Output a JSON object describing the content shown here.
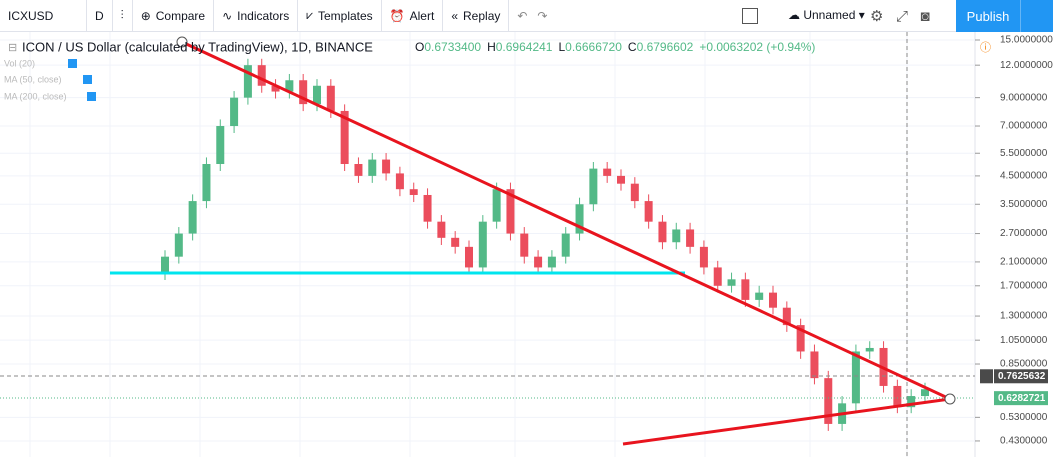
{
  "toolbar": {
    "symbol": "ICXUSD",
    "interval": "D",
    "compare": "Compare",
    "indicators": "Indicators",
    "templates": "Templates",
    "alert": "Alert",
    "replay": "Replay",
    "layout_name": "Unnamed",
    "publish": "Publish"
  },
  "legend": {
    "title": "ICON / US Dollar (calculated by TradingView), 1D, BINANCE",
    "o": "O",
    "open": "0.6733400",
    "h": "H",
    "high": "0.6964241",
    "l": "L",
    "low": "0.6666720",
    "c": "C",
    "close": "0.6796602",
    "change": "+0.0063202 (+0.94%)",
    "studies": [
      "Vol (20)",
      "MA (50, close)",
      "MA (200, close)"
    ]
  },
  "chart_data": {
    "type": "candlestick",
    "log_scale": true,
    "grid": true,
    "up_color": "#53b987",
    "down_color": "#eb4d5c",
    "ylim": [
      0.373,
      16.1
    ],
    "yticks": [
      {
        "value": 15,
        "label": "15.0000000"
      },
      {
        "value": 12,
        "label": "12.0000000"
      },
      {
        "value": 9,
        "label": "9.0000000"
      },
      {
        "value": 7,
        "label": "7.0000000"
      },
      {
        "value": 5.5,
        "label": "5.5000000"
      },
      {
        "value": 4.5,
        "label": "4.5000000"
      },
      {
        "value": 3.5,
        "label": "3.5000000"
      },
      {
        "value": 2.7,
        "label": "2.7000000"
      },
      {
        "value": 2.1,
        "label": "2.1000000"
      },
      {
        "value": 1.7,
        "label": "1.7000000"
      },
      {
        "value": 1.3,
        "label": "1.3000000"
      },
      {
        "value": 1.05,
        "label": "1.0500000"
      },
      {
        "value": 0.85,
        "label": "0.8500000"
      },
      {
        "value": 0.53,
        "label": "0.5300000"
      },
      {
        "value": 0.43,
        "label": "0.4300000"
      }
    ],
    "price_labels": [
      {
        "value": 0.7625632,
        "label": "0.7625632",
        "color": "#4a4a4a"
      },
      {
        "value": 0.6282721,
        "label": "0.6282721",
        "color": "#53b987"
      }
    ],
    "open": [
      1.9,
      2.2,
      2.7,
      3.6,
      5.0,
      7.0,
      9.0,
      12.0,
      10.0,
      9.5,
      10.5,
      8.5,
      10.0,
      8.0,
      5.0,
      4.5,
      5.2,
      4.6,
      4.0,
      3.8,
      3.0,
      2.6,
      2.4,
      2.0,
      3.0,
      4.0,
      2.7,
      2.2,
      2.0,
      2.2,
      2.7,
      3.5,
      4.8,
      4.5,
      4.2,
      3.6,
      3.0,
      2.5,
      2.8,
      2.4,
      2.0,
      1.7,
      1.8,
      1.5,
      1.6,
      1.4,
      1.2,
      0.95,
      0.75,
      0.5,
      0.6,
      0.95,
      0.98,
      0.7,
      0.58,
      0.64
    ],
    "high": [
      2.33,
      2.86,
      3.82,
      5.3,
      7.42,
      9.54,
      12.7,
      12.7,
      10.6,
      11.1,
      11.1,
      10.6,
      10.6,
      8.48,
      5.3,
      5.51,
      5.51,
      4.88,
      4.24,
      4.03,
      3.18,
      2.76,
      2.54,
      3.18,
      4.24,
      4.24,
      2.86,
      2.33,
      2.33,
      2.86,
      3.71,
      5.09,
      5.09,
      4.77,
      4.45,
      3.82,
      3.18,
      2.97,
      2.97,
      2.54,
      2.12,
      1.91,
      1.91,
      1.7,
      1.7,
      1.48,
      1.27,
      1.01,
      0.8,
      0.64,
      1.01,
      1.04,
      1.04,
      0.74,
      0.68,
      0.72
    ],
    "low": [
      1.79,
      2.07,
      2.54,
      3.38,
      4.7,
      6.58,
      8.46,
      9.4,
      8.93,
      8.93,
      7.99,
      7.99,
      7.52,
      4.7,
      4.23,
      4.23,
      4.32,
      3.76,
      3.57,
      2.82,
      2.44,
      2.26,
      1.88,
      1.88,
      2.82,
      2.54,
      2.07,
      1.88,
      1.88,
      2.07,
      2.54,
      3.29,
      4.23,
      3.95,
      3.38,
      2.82,
      2.35,
      2.35,
      2.26,
      1.88,
      1.6,
      1.6,
      1.41,
      1.41,
      1.32,
      1.13,
      0.89,
      0.71,
      0.47,
      0.47,
      0.56,
      0.89,
      0.66,
      0.55,
      0.55,
      0.6
    ],
    "close": [
      2.2,
      2.7,
      3.6,
      5.0,
      7.0,
      9.0,
      12.0,
      10.0,
      9.5,
      10.5,
      8.5,
      10.0,
      8.0,
      5.0,
      4.5,
      5.2,
      4.6,
      4.0,
      3.8,
      3.0,
      2.6,
      2.4,
      2.0,
      3.0,
      4.0,
      2.7,
      2.2,
      2.0,
      2.2,
      2.7,
      3.5,
      4.8,
      4.5,
      4.2,
      3.6,
      3.0,
      2.5,
      2.8,
      2.4,
      2.0,
      1.7,
      1.8,
      1.5,
      1.6,
      1.4,
      1.2,
      0.95,
      0.75,
      0.5,
      0.6,
      0.95,
      0.98,
      0.7,
      0.58,
      0.64,
      0.68
    ]
  }
}
